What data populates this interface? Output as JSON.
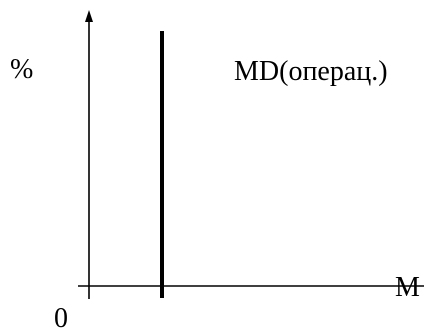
{
  "chart_data": {
    "type": "line",
    "title": "",
    "xlabel": "M",
    "ylabel": "%",
    "origin_label": "0",
    "grid": false,
    "series": [
      {
        "name": "MD(операц.)",
        "kind": "vertical-line",
        "color": "#000000"
      }
    ]
  },
  "colors": {
    "axis": "#000000",
    "series": "#000000",
    "background": "#ffffff"
  }
}
